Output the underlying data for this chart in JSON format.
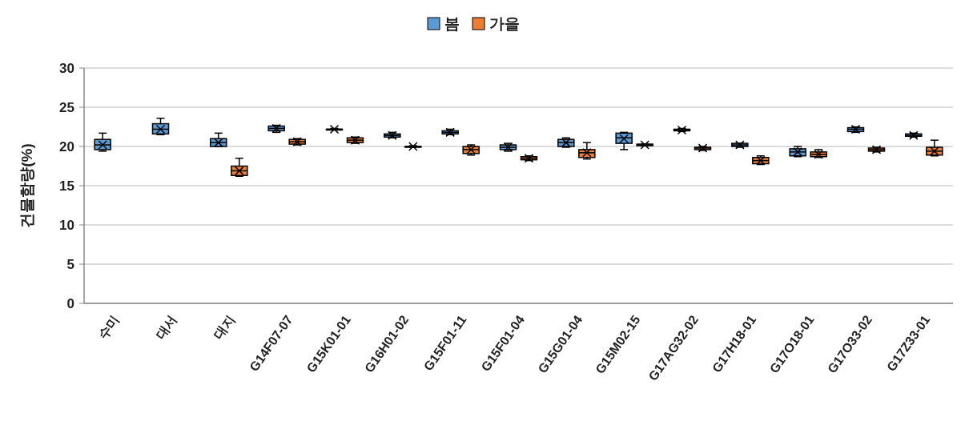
{
  "chart_data": {
    "type": "box",
    "ylabel": "건물함량(%)",
    "categories": [
      "수미",
      "대서",
      "대지",
      "G14F07-07",
      "G15K01-01",
      "G16H01-02",
      "G15F01-11",
      "G15F01-04",
      "G15G01-04",
      "G15M02-15",
      "G17AG32-02",
      "G17H18-01",
      "G17O18-01",
      "G17O33-02",
      "G17Z33-01"
    ],
    "ylim": [
      0,
      30
    ],
    "yticks": [
      0,
      5,
      10,
      15,
      20,
      25,
      30
    ],
    "grid": "y",
    "legend": "top",
    "series": [
      {
        "name": "봄",
        "color": "#5b9bd5",
        "boxes": [
          {
            "low": 19.4,
            "q1": 19.6,
            "median": 20.2,
            "q3": 20.9,
            "high": 21.7,
            "mean": 20.2
          },
          {
            "low": 21.5,
            "q1": 21.6,
            "median": 22.2,
            "q3": 22.9,
            "high": 23.6,
            "mean": 22.2
          },
          {
            "low": 20.0,
            "q1": 20.0,
            "median": 20.5,
            "q3": 21.0,
            "high": 21.7,
            "mean": 20.5
          },
          {
            "low": 21.8,
            "q1": 22.0,
            "median": 22.3,
            "q3": 22.6,
            "high": 22.7,
            "mean": 22.3
          },
          {
            "low": 22.1,
            "q1": 22.1,
            "median": 22.2,
            "q3": 22.2,
            "high": 22.3,
            "mean": 22.2
          },
          {
            "low": 21.1,
            "q1": 21.2,
            "median": 21.4,
            "q3": 21.6,
            "high": 21.8,
            "mean": 21.4
          },
          {
            "low": 21.5,
            "q1": 21.6,
            "median": 21.8,
            "q3": 22.0,
            "high": 22.2,
            "mean": 21.8
          },
          {
            "low": 19.4,
            "q1": 19.6,
            "median": 19.9,
            "q3": 20.2,
            "high": 20.4,
            "mean": 19.9
          },
          {
            "low": 19.9,
            "q1": 20.0,
            "median": 20.5,
            "q3": 20.9,
            "high": 21.1,
            "mean": 20.5
          },
          {
            "low": 19.6,
            "q1": 20.4,
            "median": 21.1,
            "q3": 21.7,
            "high": 21.8,
            "mean": 21.0
          },
          {
            "low": 21.9,
            "q1": 22.0,
            "median": 22.1,
            "q3": 22.2,
            "high": 22.3,
            "mean": 22.1
          },
          {
            "low": 19.9,
            "q1": 20.0,
            "median": 20.2,
            "q3": 20.4,
            "high": 20.4,
            "mean": 20.2
          },
          {
            "low": 18.7,
            "q1": 18.8,
            "median": 19.3,
            "q3": 19.7,
            "high": 20.0,
            "mean": 19.3
          },
          {
            "low": 21.8,
            "q1": 21.9,
            "median": 22.2,
            "q3": 22.4,
            "high": 22.5,
            "mean": 22.2
          },
          {
            "low": 21.2,
            "q1": 21.3,
            "median": 21.4,
            "q3": 21.6,
            "high": 21.7,
            "mean": 21.4
          }
        ]
      },
      {
        "name": "가을",
        "color": "#ed7d31",
        "boxes": [
          null,
          null,
          {
            "low": 16.2,
            "q1": 16.3,
            "median": 16.9,
            "q3": 17.5,
            "high": 18.5,
            "mean": 16.9
          },
          {
            "low": 20.2,
            "q1": 20.3,
            "median": 20.6,
            "q3": 20.9,
            "high": 21.0,
            "mean": 20.6
          },
          {
            "low": 20.4,
            "q1": 20.5,
            "median": 20.8,
            "q3": 21.1,
            "high": 21.2,
            "mean": 20.8
          },
          {
            "low": 19.9,
            "q1": 19.9,
            "median": 20.0,
            "q3": 20.0,
            "high": 20.1,
            "mean": 20.0
          },
          {
            "low": 18.9,
            "q1": 19.1,
            "median": 19.6,
            "q3": 20.0,
            "high": 20.2,
            "mean": 19.6
          },
          {
            "low": 18.2,
            "q1": 18.3,
            "median": 18.5,
            "q3": 18.7,
            "high": 18.8,
            "mean": 18.5
          },
          {
            "low": 18.4,
            "q1": 18.6,
            "median": 19.2,
            "q3": 19.6,
            "high": 20.5,
            "mean": 19.2
          },
          {
            "low": 20.1,
            "q1": 20.1,
            "median": 20.2,
            "q3": 20.3,
            "high": 20.3,
            "mean": 20.2
          },
          {
            "low": 19.5,
            "q1": 19.6,
            "median": 19.8,
            "q3": 19.9,
            "high": 20.0,
            "mean": 19.8
          },
          {
            "low": 17.7,
            "q1": 17.8,
            "median": 18.2,
            "q3": 18.6,
            "high": 18.8,
            "mean": 18.2
          },
          {
            "low": 18.6,
            "q1": 18.7,
            "median": 19.0,
            "q3": 19.3,
            "high": 19.6,
            "mean": 19.0
          },
          {
            "low": 19.3,
            "q1": 19.4,
            "median": 19.6,
            "q3": 19.8,
            "high": 19.9,
            "mean": 19.6
          },
          {
            "low": 18.8,
            "q1": 18.9,
            "median": 19.4,
            "q3": 19.9,
            "high": 20.8,
            "mean": 19.4
          }
        ]
      }
    ]
  }
}
